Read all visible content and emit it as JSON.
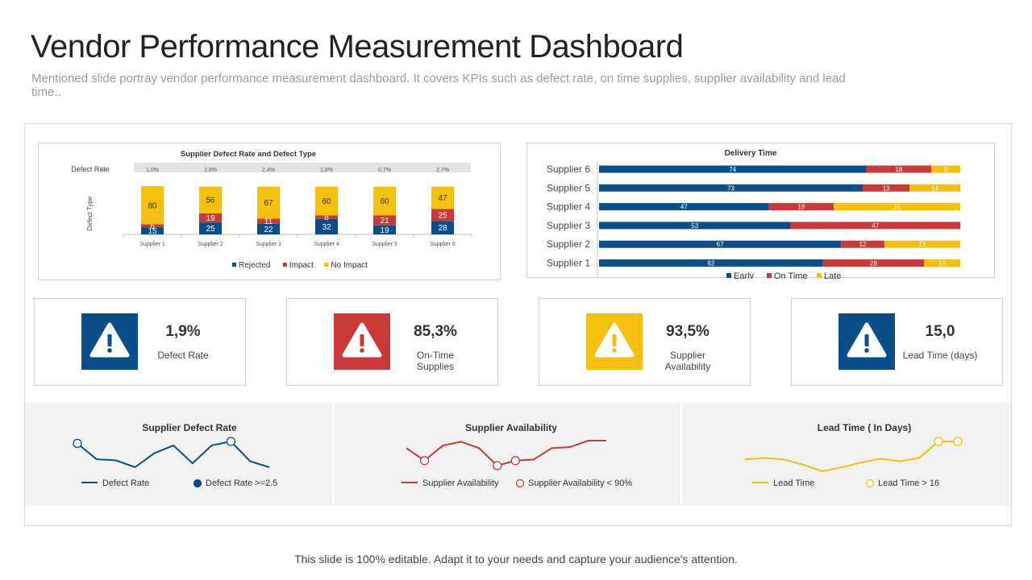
{
  "page": {
    "title": "Vendor Performance Measurement Dashboard",
    "subtitle": "Mentioned slide portray vendor performance measurement dashboard. It covers KPIs such as defect rate, on time supplies, supplier availability and lead time..",
    "footer": "This slide is 100% editable. Adapt it to your needs and capture your audience's attention."
  },
  "colors": {
    "blue": "#0b4f8a",
    "red": "#c9393a",
    "yellow": "#f5bf0f",
    "grey_band": "#f2f2f2"
  },
  "chart_data": [
    {
      "id": "defect",
      "type": "bar",
      "stacked": true,
      "title": "Supplier Defect Rate and Defect Type",
      "ylabel": "Defect Type",
      "rate_label": "Defect Rate",
      "rates": [
        "1,0%",
        "2,8%",
        "2,4%",
        "1,8%",
        "0,7%",
        "2,7%"
      ],
      "categories": [
        "Supplier 1",
        "Supplier 2",
        "Supplier 3",
        "Supplier 4",
        "Supplier 5",
        "Supplier 6"
      ],
      "series": [
        {
          "name": "Rejected",
          "color": "#0b4f8a",
          "values": [
            15,
            25,
            22,
            32,
            19,
            28
          ]
        },
        {
          "name": "Impact",
          "color": "#c9393a",
          "values": [
            6,
            19,
            11,
            8,
            21,
            25
          ]
        },
        {
          "name": "No Impact",
          "color": "#f5bf0f",
          "values": [
            80,
            56,
            67,
            60,
            60,
            47
          ]
        }
      ]
    },
    {
      "id": "delivery",
      "type": "bar",
      "orientation": "horizontal",
      "stacked": true,
      "title": "Delivery Time",
      "categories": [
        "Supplier 6",
        "Supplier 5",
        "Supplier 4",
        "Supplier 3",
        "Supplier 2",
        "Supplier 1"
      ],
      "series": [
        {
          "name": "Early",
          "color": "#0b4f8a",
          "values": [
            74,
            73,
            47,
            53,
            67,
            62
          ]
        },
        {
          "name": "On Time",
          "color": "#c9393a",
          "values": [
            18,
            13,
            18,
            47,
            12,
            28
          ]
        },
        {
          "name": "Late",
          "color": "#f5bf0f",
          "values": [
            8,
            14,
            35,
            null,
            21,
            10
          ]
        }
      ]
    },
    {
      "id": "spark_defect",
      "type": "line",
      "title": "Supplier Defect Rate",
      "color": "#0b4f8a",
      "marker_fill": "#0b4f8a",
      "values": [
        2.7,
        1.9,
        1.85,
        1.5,
        2.2,
        2.6,
        1.7,
        2.6,
        2.8,
        1.8,
        1.5
      ],
      "highlight": [
        0,
        8
      ],
      "legend": [
        "Defect Rate",
        "Defect Rate >=2.5"
      ]
    },
    {
      "id": "spark_avail",
      "type": "line",
      "title": "Supplier Availability",
      "color": "#c9393a",
      "marker_fill": "#ffffff",
      "values": [
        92.5,
        90,
        93,
        93.8,
        92.5,
        89,
        90,
        90.2,
        92.5,
        92.7,
        94,
        94
      ],
      "highlight": [
        1,
        5,
        6
      ],
      "legend": [
        "Supplier Availability",
        "Supplier Availability < 90%"
      ]
    },
    {
      "id": "spark_lead",
      "type": "line",
      "title": "Lead Time ( In Days)",
      "color": "#f5bf0f",
      "marker_fill": "#ffffff",
      "values": [
        13.8,
        14,
        13.8,
        13,
        12,
        12.6,
        13.3,
        13.9,
        13.5,
        14,
        16.5,
        16.5
      ],
      "highlight": [
        10,
        11
      ],
      "legend": [
        "Lead Time",
        "Lead Time  > 16"
      ]
    }
  ],
  "kpis": [
    {
      "value": "1,9%",
      "label": "Defect Rate",
      "color": "#0b4f8a",
      "icon": "warning-icon"
    },
    {
      "value": "85,3%",
      "label": "On-Time\nSupplies",
      "color": "#c9393a",
      "icon": "warning-icon"
    },
    {
      "value": "93,5%",
      "label": "Supplier\nAvailability",
      "color": "#f5bf0f",
      "icon": "warning-icon"
    },
    {
      "value": "15,0",
      "label": "Lead Time (days)",
      "color": "#0b4f8a",
      "icon": "warning-icon"
    }
  ]
}
